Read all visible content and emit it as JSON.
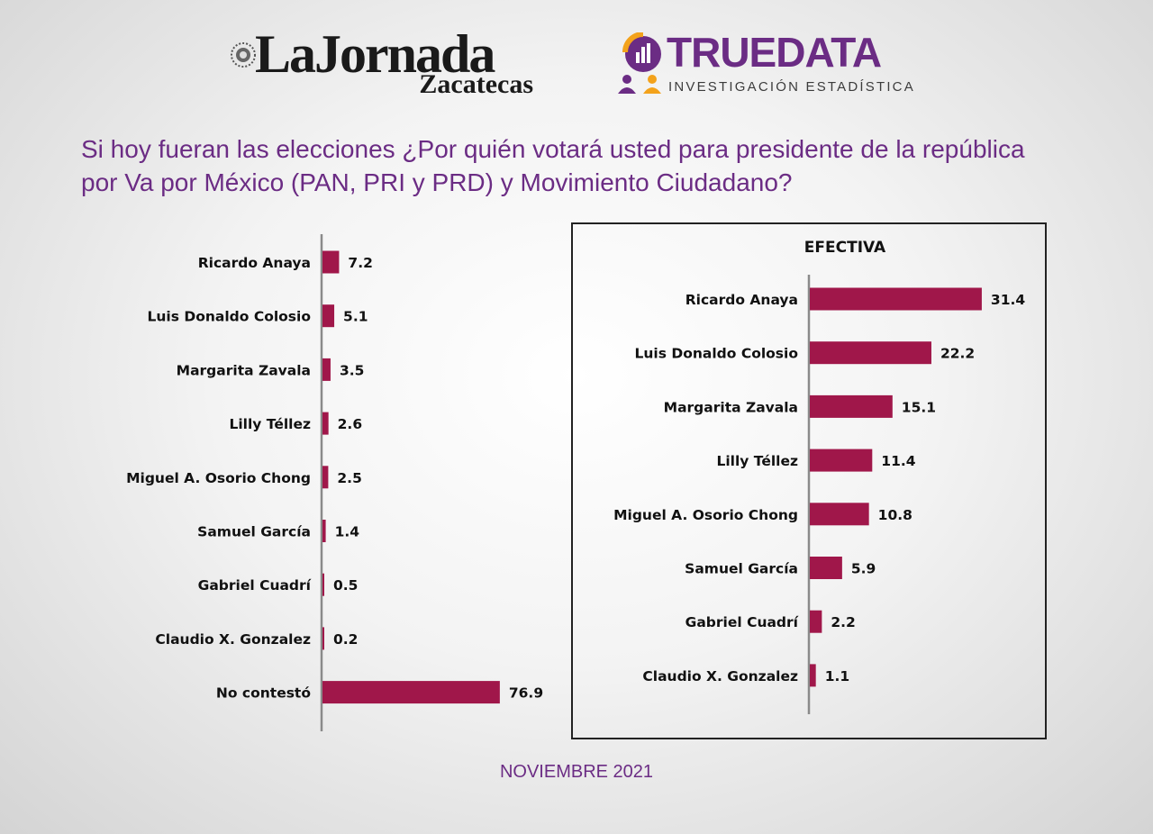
{
  "header": {
    "logo_left": {
      "main": "LaJornada",
      "sub": "Zacatecas"
    },
    "logo_right": {
      "main": "TRUEDATA",
      "sub": "INVESTIGACIÓN ESTADÍSTICA"
    }
  },
  "question": "Si hoy fueran las elecciones ¿Por quién votará usted para presidente de la república por Va por México (PAN, PRI y PRD) y Movimiento Ciudadano?",
  "footer": "NOVIEMBRE 2021",
  "colors": {
    "bar": "#a0174a",
    "accent": "#6b2c84",
    "logo_icon_orange": "#f3a21b",
    "axis": "#8a8a8a",
    "text": "#111111"
  },
  "chart_data": [
    {
      "type": "bar",
      "orientation": "horizontal",
      "title": "",
      "categories": [
        "Ricardo Anaya",
        "Luis Donaldo Colosio",
        "Margarita Zavala",
        "Lilly Téllez",
        "Miguel A. Osorio Chong",
        "Samuel García",
        "Gabriel Cuadrí",
        "Claudio X. Gonzalez",
        "No contestó"
      ],
      "values": [
        7.2,
        5.1,
        3.5,
        2.6,
        2.5,
        1.4,
        0.5,
        0.2,
        76.9
      ],
      "value_labels": [
        "7.2",
        "5.1",
        "3.5",
        "2.6",
        "2.5",
        "1.4",
        "0.5",
        "0.2",
        "76.9"
      ],
      "xlim": [
        0,
        100
      ],
      "grid": false,
      "legend": "none"
    },
    {
      "type": "bar",
      "orientation": "horizontal",
      "title": "EFECTIVA",
      "categories": [
        "Ricardo Anaya",
        "Luis Donaldo Colosio",
        "Margarita Zavala",
        "Lilly Téllez",
        "Miguel A. Osorio Chong",
        "Samuel García",
        "Gabriel Cuadrí",
        "Claudio X. Gonzalez"
      ],
      "values": [
        31.4,
        22.2,
        15.1,
        11.4,
        10.8,
        5.9,
        2.2,
        1.1
      ],
      "value_labels": [
        "31.4",
        "22.2",
        "15.1",
        "11.4",
        "10.8",
        "5.9",
        "2.2",
        "1.1"
      ],
      "xlim": [
        0,
        100
      ],
      "grid": false,
      "legend": "none"
    }
  ]
}
